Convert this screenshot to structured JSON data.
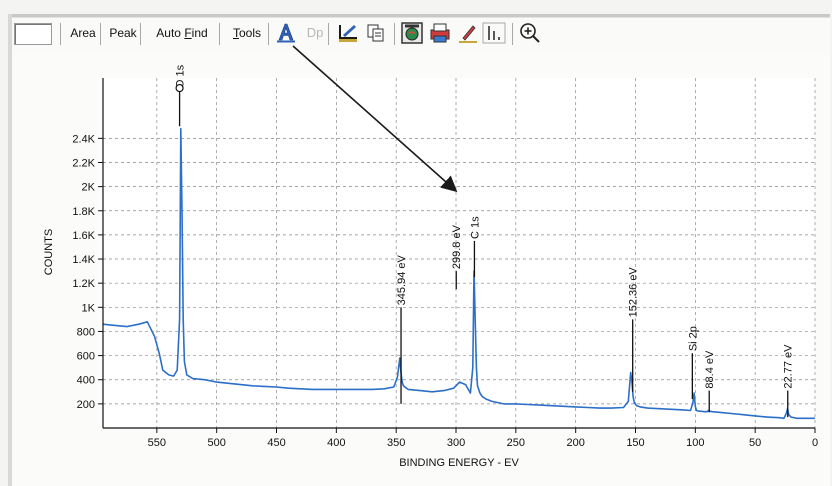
{
  "toolbar": {
    "area_label": "Area",
    "peak_label": "Peak",
    "autofind_pre": "Auto ",
    "autofind_u": "F",
    "autofind_post": "ind",
    "tools_u": "T",
    "tools_post": "ools",
    "dp_label": "Dp",
    "icons": [
      "annotate-a-icon",
      "dp-icon",
      "draw-edit-icon",
      "copy-icon",
      "image-icon",
      "print-icon",
      "pen-icon",
      "bar-markers-icon",
      "zoom-in-icon"
    ]
  },
  "colors": {
    "spectrum": "#2b6fc9",
    "axes": "#111111",
    "grid": "#8a8a8a",
    "background": "#fbfbfa"
  },
  "chart_data": {
    "type": "line",
    "xlabel": "BINDING ENERGY - EV",
    "ylabel": "COUNTS",
    "xlim": [
      595,
      0
    ],
    "ylim": [
      0,
      2900
    ],
    "x_reversed": true,
    "grid": true,
    "x_ticks": [
      550,
      500,
      450,
      400,
      350,
      300,
      250,
      200,
      150,
      100,
      50,
      0
    ],
    "x_tick_labels": [
      "550",
      "500",
      "450",
      "400",
      "350",
      "300",
      "250",
      "200",
      "150",
      "100",
      "50",
      "0"
    ],
    "y_ticks": [
      200,
      400,
      600,
      800,
      1000,
      1200,
      1400,
      1600,
      1800,
      2000,
      2200,
      2400
    ],
    "y_tick_labels": [
      "200",
      "400",
      "600",
      "800",
      "1K",
      "1.2K",
      "1.4K",
      "1.6K",
      "1.8K",
      "2K",
      "2.2K",
      "2.4K"
    ],
    "series": [
      {
        "x": [
          595,
          585,
          575,
          565,
          558,
          552,
          548,
          545,
          540,
          536,
          533,
          531,
          530,
          529,
          528,
          527,
          525,
          520,
          510,
          500,
          490,
          480,
          470,
          460,
          450,
          440,
          430,
          420,
          410,
          400,
          390,
          380,
          370,
          360,
          352,
          349,
          347,
          346,
          345,
          344,
          342,
          340,
          330,
          320,
          310,
          302,
          297,
          292,
          288,
          286,
          285,
          284,
          283,
          282,
          280,
          278,
          275,
          270,
          260,
          250,
          240,
          230,
          220,
          210,
          200,
          190,
          180,
          170,
          160,
          156,
          154,
          153,
          152,
          151,
          149,
          146,
          140,
          130,
          120,
          110,
          104,
          102,
          101,
          100,
          99,
          97,
          92,
          90,
          89,
          88,
          86,
          80,
          70,
          60,
          50,
          40,
          30,
          26,
          24,
          23,
          22,
          20,
          15,
          10,
          5,
          0
        ],
        "y": [
          860,
          850,
          840,
          860,
          880,
          760,
          620,
          480,
          440,
          430,
          480,
          900,
          2480,
          1800,
          900,
          550,
          440,
          410,
          400,
          380,
          370,
          360,
          350,
          345,
          340,
          330,
          325,
          320,
          320,
          320,
          320,
          320,
          320,
          325,
          340,
          420,
          580,
          460,
          380,
          350,
          335,
          320,
          310,
          300,
          310,
          330,
          380,
          360,
          290,
          500,
          1300,
          900,
          500,
          350,
          290,
          260,
          240,
          220,
          200,
          200,
          195,
          190,
          185,
          180,
          175,
          170,
          165,
          165,
          170,
          220,
          460,
          380,
          260,
          210,
          185,
          175,
          165,
          160,
          155,
          150,
          145,
          210,
          290,
          180,
          145,
          140,
          135,
          135,
          145,
          140,
          135,
          130,
          120,
          110,
          100,
          90,
          85,
          80,
          120,
          160,
          110,
          90,
          80,
          80,
          80,
          80
        ]
      }
    ],
    "peaks": [
      {
        "label": "O 1s",
        "x": 531,
        "height": 2800
      },
      {
        "label": "345.94 eV",
        "x": 345.94,
        "height": 1000
      },
      {
        "label": "299.8 eV",
        "x": 299.8,
        "height": 1300
      },
      {
        "label": "C 1s",
        "x": 284.6,
        "height": 1550
      },
      {
        "label": "152.36 eV",
        "x": 152.36,
        "height": 900
      },
      {
        "label": "Si 2p",
        "x": 102.5,
        "height": 620
      },
      {
        "label": "88.4 eV",
        "x": 88.4,
        "height": 310
      },
      {
        "label": "22.77 eV",
        "x": 22.77,
        "height": 310
      }
    ]
  }
}
